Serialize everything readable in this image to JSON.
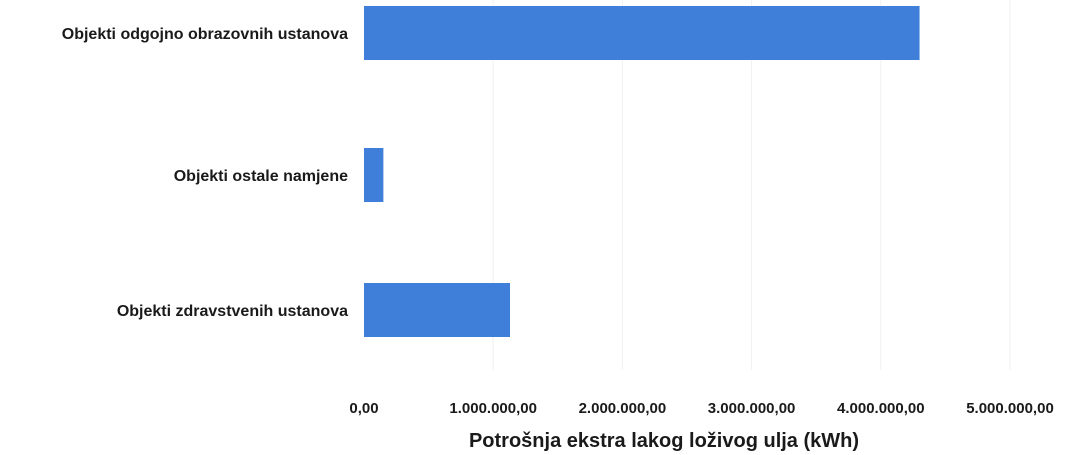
{
  "chart_data": {
    "type": "bar",
    "orientation": "horizontal",
    "categories": [
      "Objekti odgojno obrazovnih ustanova",
      "Objekti ostale namjene",
      "Objekti zdravstvenih ustanova"
    ],
    "values": [
      4300000,
      150000,
      1130000
    ],
    "xlabel": "Potrošnja ekstra lakog loživog ulja (kWh)",
    "xlim": [
      0,
      5000000
    ],
    "xticks": [
      0,
      1000000,
      2000000,
      3000000,
      4000000,
      5000000
    ],
    "xtick_labels": [
      "0,00",
      "1.000.000,00",
      "2.000.000,00",
      "3.000.000,00",
      "4.000.000,00",
      "5.000.000,00"
    ],
    "grid": "vertical, faint",
    "legend": "none",
    "colors": {
      "bar": "#3f7fd9",
      "text": "#1a1a1a",
      "grid": "#f1f1f1"
    }
  }
}
